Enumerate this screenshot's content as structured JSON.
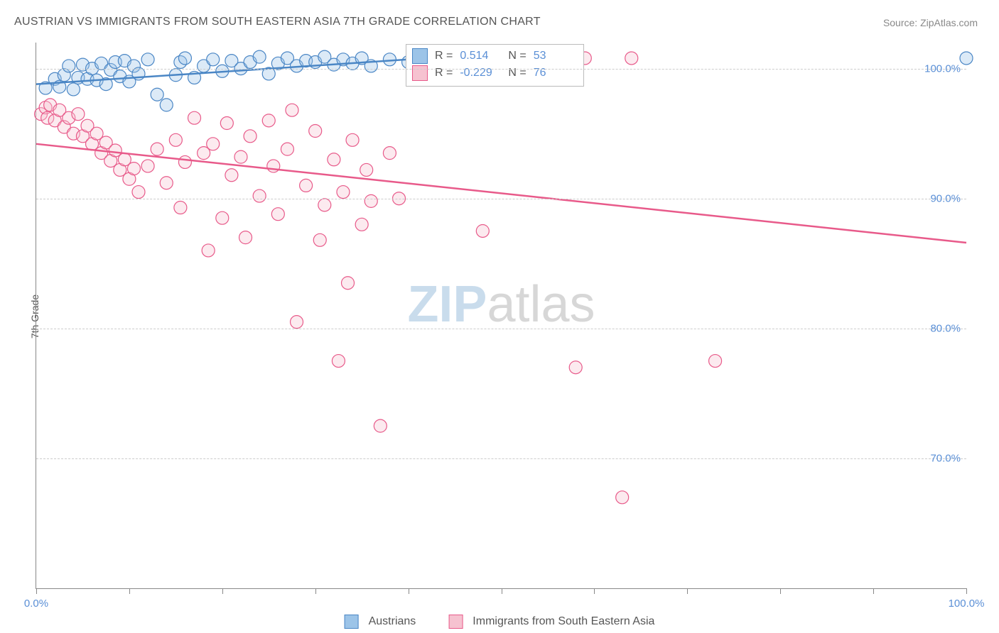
{
  "title": "AUSTRIAN VS IMMIGRANTS FROM SOUTH EASTERN ASIA 7TH GRADE CORRELATION CHART",
  "source": "Source: ZipAtlas.com",
  "ylabel": "7th Grade",
  "watermark_zip": "ZIP",
  "watermark_atlas": "atlas",
  "colors": {
    "series1_fill": "#9cc4e8",
    "series1_stroke": "#4a86c5",
    "series2_fill": "#f6c2d0",
    "series2_stroke": "#e85a8a",
    "axis_text": "#5a8fd6",
    "title_text": "#555555",
    "grid": "#cccccc",
    "watermark_zip": "#c9dcec",
    "watermark_atlas": "#d7d7d7"
  },
  "chart": {
    "type": "scatter",
    "xlim": [
      0,
      100
    ],
    "ylim": [
      60,
      102
    ],
    "xtick_positions": [
      0,
      10,
      20,
      30,
      40,
      50,
      60,
      70,
      80,
      90,
      100
    ],
    "xtick_labels": {
      "0": "0.0%",
      "100": "100.0%"
    },
    "ytick_positions": [
      70,
      80,
      90,
      100
    ],
    "ytick_labels": {
      "70": "70.0%",
      "80": "80.0%",
      "90": "90.0%",
      "100": "100.0%"
    },
    "marker_radius": 9,
    "marker_fill_opacity": 0.35,
    "line_width": 2.5,
    "series": [
      {
        "key": "austrians",
        "label": "Austrians",
        "r_value": "0.514",
        "n_value": "53",
        "trend": {
          "x1": 0,
          "y1": 98.8,
          "x2": 42,
          "y2": 100.8
        },
        "points": [
          [
            1,
            98.5
          ],
          [
            2,
            99.2
          ],
          [
            2.5,
            98.6
          ],
          [
            3,
            99.5
          ],
          [
            3.5,
            100.2
          ],
          [
            4,
            98.4
          ],
          [
            4.5,
            99.3
          ],
          [
            5,
            100.3
          ],
          [
            5.5,
            99.2
          ],
          [
            6,
            100.0
          ],
          [
            6.5,
            99.1
          ],
          [
            7,
            100.4
          ],
          [
            7.5,
            98.8
          ],
          [
            8,
            99.9
          ],
          [
            8.5,
            100.5
          ],
          [
            9,
            99.4
          ],
          [
            9.5,
            100.6
          ],
          [
            10,
            99.0
          ],
          [
            10.5,
            100.2
          ],
          [
            11,
            99.6
          ],
          [
            12,
            100.7
          ],
          [
            13,
            98.0
          ],
          [
            14,
            97.2
          ],
          [
            15,
            99.5
          ],
          [
            15.5,
            100.5
          ],
          [
            16,
            100.8
          ],
          [
            17,
            99.3
          ],
          [
            18,
            100.2
          ],
          [
            19,
            100.7
          ],
          [
            20,
            99.8
          ],
          [
            21,
            100.6
          ],
          [
            22,
            100.0
          ],
          [
            23,
            100.5
          ],
          [
            24,
            100.9
          ],
          [
            25,
            99.6
          ],
          [
            26,
            100.4
          ],
          [
            27,
            100.8
          ],
          [
            28,
            100.2
          ],
          [
            29,
            100.6
          ],
          [
            30,
            100.5
          ],
          [
            31,
            100.9
          ],
          [
            32,
            100.3
          ],
          [
            33,
            100.7
          ],
          [
            34,
            100.4
          ],
          [
            35,
            100.8
          ],
          [
            36,
            100.2
          ],
          [
            38,
            100.7
          ],
          [
            40,
            100.5
          ],
          [
            41,
            100.9
          ],
          [
            42,
            100.3
          ],
          [
            100,
            100.8
          ]
        ]
      },
      {
        "key": "immigrants",
        "label": "Immigrants from South Eastern Asia",
        "r_value": "-0.229",
        "n_value": "76",
        "trend": {
          "x1": 0,
          "y1": 94.2,
          "x2": 100,
          "y2": 86.6
        },
        "points": [
          [
            0.5,
            96.5
          ],
          [
            1,
            97.0
          ],
          [
            1.2,
            96.2
          ],
          [
            1.5,
            97.2
          ],
          [
            2,
            96.0
          ],
          [
            2.5,
            96.8
          ],
          [
            3,
            95.5
          ],
          [
            3.5,
            96.2
          ],
          [
            4,
            95.0
          ],
          [
            4.5,
            96.5
          ],
          [
            5,
            94.8
          ],
          [
            5.5,
            95.6
          ],
          [
            6,
            94.2
          ],
          [
            6.5,
            95.0
          ],
          [
            7,
            93.5
          ],
          [
            7.5,
            94.3
          ],
          [
            8,
            92.9
          ],
          [
            8.5,
            93.7
          ],
          [
            9,
            92.2
          ],
          [
            9.5,
            93.0
          ],
          [
            10,
            91.5
          ],
          [
            10.5,
            92.3
          ],
          [
            11,
            90.5
          ],
          [
            12,
            92.5
          ],
          [
            13,
            93.8
          ],
          [
            14,
            91.2
          ],
          [
            15,
            94.5
          ],
          [
            15.5,
            89.3
          ],
          [
            16,
            92.8
          ],
          [
            17,
            96.2
          ],
          [
            18,
            93.5
          ],
          [
            18.5,
            86.0
          ],
          [
            19,
            94.2
          ],
          [
            20,
            88.5
          ],
          [
            20.5,
            95.8
          ],
          [
            21,
            91.8
          ],
          [
            22,
            93.2
          ],
          [
            22.5,
            87.0
          ],
          [
            23,
            94.8
          ],
          [
            24,
            90.2
          ],
          [
            25,
            96.0
          ],
          [
            25.5,
            92.5
          ],
          [
            26,
            88.8
          ],
          [
            27,
            93.8
          ],
          [
            27.5,
            96.8
          ],
          [
            28,
            80.5
          ],
          [
            29,
            91.0
          ],
          [
            30,
            95.2
          ],
          [
            30.5,
            86.8
          ],
          [
            31,
            89.5
          ],
          [
            32,
            93.0
          ],
          [
            32.5,
            77.5
          ],
          [
            33,
            90.5
          ],
          [
            33.5,
            83.5
          ],
          [
            34,
            94.5
          ],
          [
            35,
            88.0
          ],
          [
            35.5,
            92.2
          ],
          [
            36,
            89.8
          ],
          [
            37,
            72.5
          ],
          [
            38,
            93.5
          ],
          [
            39,
            90.0
          ],
          [
            48,
            87.5
          ],
          [
            59,
            100.8
          ],
          [
            64,
            100.8
          ],
          [
            63,
            67.0
          ],
          [
            58,
            77.0
          ],
          [
            73,
            77.5
          ]
        ]
      }
    ]
  },
  "legend_bottom": {
    "series1": "Austrians",
    "series2": "Immigrants from South Eastern Asia"
  },
  "legend_stats_prefix_r": "R =",
  "legend_stats_prefix_n": "N ="
}
